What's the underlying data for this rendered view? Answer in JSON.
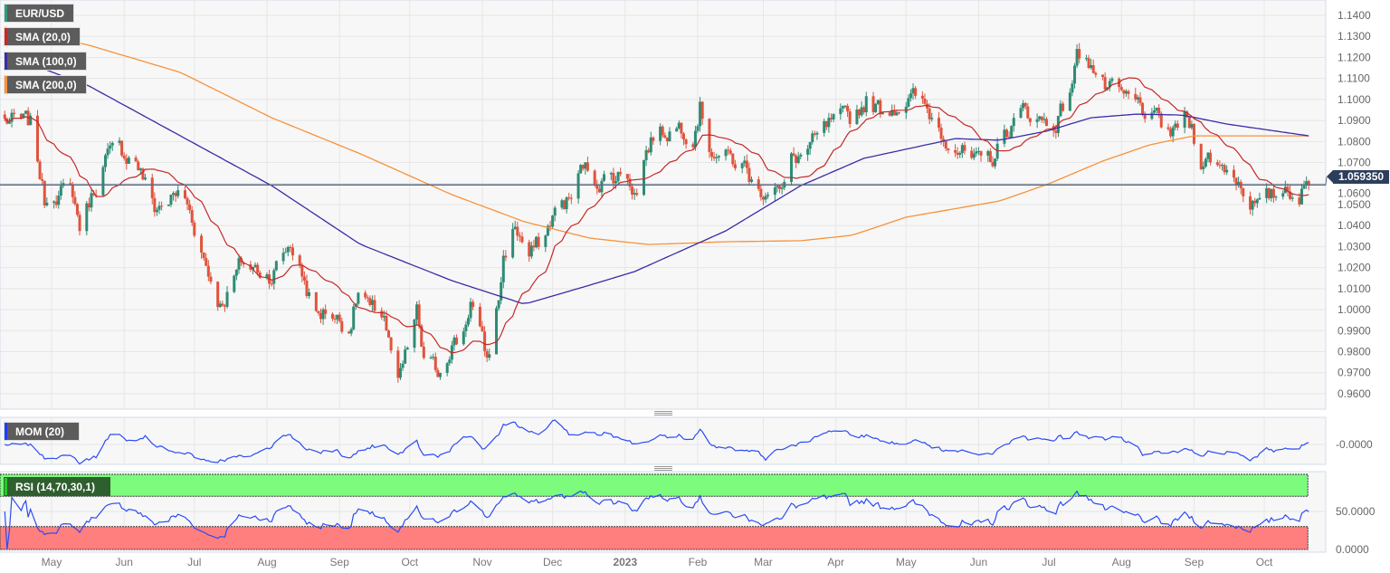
{
  "legend": {
    "symbol": {
      "label": "EUR/USD",
      "color": "#2e9c7c"
    },
    "sma20": {
      "label": "SMA (20,0)",
      "color": "#c62828"
    },
    "sma100": {
      "label": "SMA (100,0)",
      "color": "#3a2ca8"
    },
    "sma200": {
      "label": "SMA (200,0)",
      "color": "#f7923a"
    },
    "mom": {
      "label": "MOM (20)",
      "color": "#1f3cff"
    },
    "rsi": {
      "label": "RSI (14,70,30,1)",
      "color": "#22cc22"
    }
  },
  "current_price": "1.059350",
  "colors": {
    "up": "#2e8b74",
    "down": "#e0533d",
    "indicator_line": "#2a4bf5",
    "rsi_overbought_zone": "#7dfb7d",
    "rsi_oversold_zone": "#ff7f7f",
    "price_line": "#5a6b85"
  },
  "chart_data": {
    "type": "candlestick",
    "symbol": "EUR/USD",
    "ylim": [
      0.955,
      1.145
    ],
    "y_ticks": [
      "1.1400",
      "1.1300",
      "1.1200",
      "1.1100",
      "1.1000",
      "1.0900",
      "1.0800",
      "1.0700",
      "1.0600",
      "1.0500",
      "1.0400",
      "1.0300",
      "1.0200",
      "1.0100",
      "1.0000",
      "0.9900",
      "0.9800",
      "0.9700",
      "0.9600"
    ],
    "x_range": [
      "2022-04-11",
      "2023-10-20"
    ],
    "x_ticks": [
      {
        "label": "May",
        "date": "2022-05-01"
      },
      {
        "label": "Jun",
        "date": "2022-06-01"
      },
      {
        "label": "Jul",
        "date": "2022-07-01"
      },
      {
        "label": "Aug",
        "date": "2022-08-01"
      },
      {
        "label": "Sep",
        "date": "2022-09-01"
      },
      {
        "label": "Oct",
        "date": "2022-10-01"
      },
      {
        "label": "Nov",
        "date": "2022-11-01"
      },
      {
        "label": "Dec",
        "date": "2022-12-01"
      },
      {
        "label": "2023",
        "date": "2023-01-01"
      },
      {
        "label": "Feb",
        "date": "2023-02-01"
      },
      {
        "label": "Mar",
        "date": "2023-03-01"
      },
      {
        "label": "Apr",
        "date": "2023-04-01"
      },
      {
        "label": "May",
        "date": "2023-05-01"
      },
      {
        "label": "Jun",
        "date": "2023-06-01"
      },
      {
        "label": "Jul",
        "date": "2023-07-01"
      },
      {
        "label": "Aug",
        "date": "2023-08-01"
      },
      {
        "label": "Sep",
        "date": "2023-09-01"
      },
      {
        "label": "Oct",
        "date": "2023-10-01"
      }
    ],
    "close": [
      [
        "2022-04-11",
        1.09
      ],
      [
        "2022-04-22",
        1.088
      ],
      [
        "2022-04-26",
        1.065
      ],
      [
        "2022-04-28",
        1.052
      ],
      [
        "2022-05-02",
        1.057
      ],
      [
        "2022-05-10",
        1.055
      ],
      [
        "2022-05-13",
        1.04
      ],
      [
        "2022-05-19",
        1.057
      ],
      [
        "2022-05-24",
        1.072
      ],
      [
        "2022-05-30",
        1.075
      ],
      [
        "2022-06-06",
        1.072
      ],
      [
        "2022-06-10",
        1.06
      ],
      [
        "2022-06-14",
        1.048
      ],
      [
        "2022-06-24",
        1.055
      ],
      [
        "2022-06-28",
        1.05
      ],
      [
        "2022-07-01",
        1.04
      ],
      [
        "2022-07-07",
        1.018
      ],
      [
        "2022-07-12",
        1.003
      ],
      [
        "2022-07-15",
        1.008
      ],
      [
        "2022-07-21",
        1.022
      ],
      [
        "2022-07-25",
        1.02
      ],
      [
        "2022-08-03",
        1.017
      ],
      [
        "2022-08-11",
        1.032
      ],
      [
        "2022-08-16",
        1.017
      ],
      [
        "2022-08-22",
        0.997
      ],
      [
        "2022-08-28",
        1.0
      ],
      [
        "2022-09-01",
        0.995
      ],
      [
        "2022-09-05",
        0.992
      ],
      [
        "2022-09-10",
        1.012
      ],
      [
        "2022-09-14",
        0.998
      ],
      [
        "2022-09-20",
        0.998
      ],
      [
        "2022-09-22",
        0.985
      ],
      [
        "2022-09-26",
        0.963
      ],
      [
        "2022-09-30",
        0.98
      ],
      [
        "2022-10-04",
        0.998
      ],
      [
        "2022-10-07",
        0.975
      ],
      [
        "2022-10-13",
        0.97
      ],
      [
        "2022-10-19",
        0.985
      ],
      [
        "2022-10-23",
        0.985
      ],
      [
        "2022-10-27",
        1.005
      ],
      [
        "2022-10-31",
        0.988
      ],
      [
        "2022-11-03",
        0.975
      ],
      [
        "2022-11-08",
        1.005
      ],
      [
        "2022-11-10",
        1.025
      ],
      [
        "2022-11-15",
        1.04
      ],
      [
        "2022-11-21",
        1.025
      ],
      [
        "2022-11-28",
        1.035
      ],
      [
        "2022-12-01",
        1.045
      ],
      [
        "2022-12-05",
        1.05
      ],
      [
        "2022-12-09",
        1.053
      ],
      [
        "2022-12-14",
        1.068
      ],
      [
        "2022-12-20",
        1.062
      ],
      [
        "2023-01-02",
        1.065
      ],
      [
        "2023-01-06",
        1.055
      ],
      [
        "2023-01-09",
        1.073
      ],
      [
        "2023-01-13",
        1.083
      ],
      [
        "2023-01-18",
        1.085
      ],
      [
        "2023-01-24",
        1.088
      ],
      [
        "2023-01-30",
        1.085
      ],
      [
        "2023-02-02",
        1.098
      ],
      [
        "2023-02-05",
        1.08
      ],
      [
        "2023-02-09",
        1.075
      ],
      [
        "2023-02-17",
        1.07
      ],
      [
        "2023-02-21",
        1.068
      ],
      [
        "2023-02-27",
        1.055
      ],
      [
        "2023-03-06",
        1.063
      ],
      [
        "2023-03-09",
        1.055
      ],
      [
        "2023-03-13",
        1.07
      ],
      [
        "2023-03-21",
        1.077
      ],
      [
        "2023-03-24",
        1.08
      ],
      [
        "2023-03-30",
        1.088
      ],
      [
        "2023-04-07",
        1.09
      ],
      [
        "2023-04-14",
        1.1
      ],
      [
        "2023-04-20",
        1.095
      ],
      [
        "2023-05-01",
        1.1
      ],
      [
        "2023-05-05",
        1.1
      ],
      [
        "2023-05-12",
        1.092
      ],
      [
        "2023-05-16",
        1.085
      ],
      [
        "2023-05-22",
        1.08
      ],
      [
        "2023-05-27",
        1.072
      ],
      [
        "2023-06-01",
        1.068
      ],
      [
        "2023-06-07",
        1.072
      ],
      [
        "2023-06-13",
        1.085
      ],
      [
        "2023-06-21",
        1.095
      ],
      [
        "2023-06-28",
        1.09
      ],
      [
        "2023-07-03",
        1.088
      ],
      [
        "2023-07-09",
        1.1
      ],
      [
        "2023-07-13",
        1.12
      ],
      [
        "2023-07-17",
        1.123
      ],
      [
        "2023-07-20",
        1.115
      ],
      [
        "2023-07-25",
        1.105
      ],
      [
        "2023-08-01",
        1.1
      ],
      [
        "2023-08-08",
        1.097
      ],
      [
        "2023-08-13",
        1.092
      ],
      [
        "2023-08-18",
        1.087
      ],
      [
        "2023-08-23",
        1.083
      ],
      [
        "2023-08-27",
        1.092
      ],
      [
        "2023-08-31",
        1.087
      ],
      [
        "2023-09-03",
        1.073
      ],
      [
        "2023-09-09",
        1.072
      ],
      [
        "2023-09-12",
        1.068
      ],
      [
        "2023-09-16",
        1.068
      ],
      [
        "2023-09-21",
        1.06
      ],
      [
        "2023-09-26",
        1.052
      ],
      [
        "2023-09-29",
        1.048
      ],
      [
        "2023-10-03",
        1.052
      ],
      [
        "2023-10-07",
        1.055
      ],
      [
        "2023-10-11",
        1.06
      ],
      [
        "2023-10-15",
        1.054
      ],
      [
        "2023-10-20",
        1.0594
      ]
    ],
    "sma100": [
      [
        "2022-04-11",
        1.1215
      ],
      [
        "2022-05-17",
        1.1064
      ],
      [
        "2022-06-25",
        1.0827
      ],
      [
        "2022-08-03",
        1.059
      ],
      [
        "2022-09-10",
        1.031
      ],
      [
        "2022-10-19",
        1.0138
      ],
      [
        "2022-11-19",
        1.0026
      ],
      [
        "2022-12-17",
        1.0117
      ],
      [
        "2023-01-05",
        1.0181
      ],
      [
        "2023-02-13",
        1.0375
      ],
      [
        "2023-03-17",
        1.059
      ],
      [
        "2023-04-13",
        1.072
      ],
      [
        "2023-05-22",
        1.0814
      ],
      [
        "2023-06-10",
        1.0806
      ],
      [
        "2023-06-30",
        1.0849
      ],
      [
        "2023-07-19",
        1.0913
      ],
      [
        "2023-08-07",
        1.093
      ],
      [
        "2023-08-27",
        1.0926
      ],
      [
        "2023-09-15",
        1.0883
      ],
      [
        "2023-10-20",
        1.0827
      ]
    ],
    "sma200": [
      [
        "2022-04-11",
        1.1344
      ],
      [
        "2022-05-17",
        1.1258
      ],
      [
        "2022-06-25",
        1.1129
      ],
      [
        "2022-08-03",
        1.0913
      ],
      [
        "2022-09-10",
        1.0741
      ],
      [
        "2022-10-19",
        1.0547
      ],
      [
        "2022-11-19",
        1.0418
      ],
      [
        "2022-12-17",
        1.034
      ],
      [
        "2023-01-11",
        1.031
      ],
      [
        "2023-02-13",
        1.0323
      ],
      [
        "2023-03-17",
        1.0328
      ],
      [
        "2023-04-08",
        1.0354
      ],
      [
        "2023-05-01",
        1.044
      ],
      [
        "2023-06-10",
        1.0517
      ],
      [
        "2023-07-01",
        1.0599
      ],
      [
        "2023-07-24",
        1.0707
      ],
      [
        "2023-08-13",
        1.0784
      ],
      [
        "2023-09-01",
        1.0827
      ],
      [
        "2023-10-20",
        1.0827
      ]
    ],
    "mom_panel": {
      "label": "MOM (20)",
      "tick": "-0.0000"
    },
    "rsi_panel": {
      "label": "RSI (14,70,30,1)",
      "ticks": [
        "50.0000",
        "0.0000"
      ],
      "overbought": 70,
      "oversold": 30,
      "ylim": [
        0,
        100
      ]
    }
  }
}
